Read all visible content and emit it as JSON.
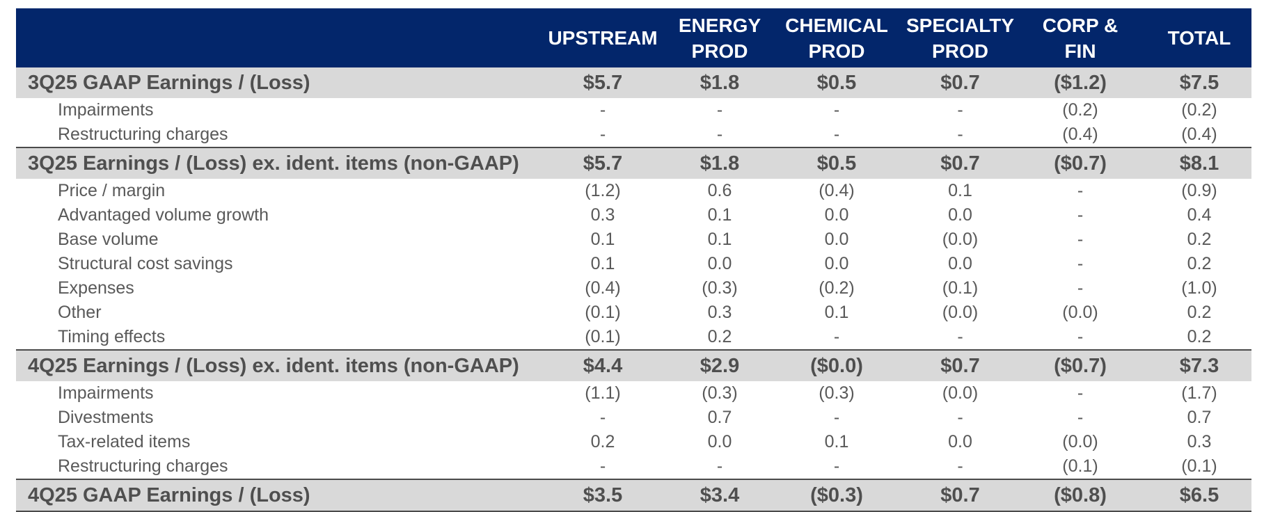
{
  "header": {
    "columns": [
      [
        "UPSTREAM"
      ],
      [
        "ENERGY",
        "PROD"
      ],
      [
        "CHEMICAL",
        "PROD"
      ],
      [
        "SPECIALTY",
        "PROD"
      ],
      [
        "CORP &",
        "FIN"
      ],
      [
        "TOTAL"
      ]
    ]
  },
  "rows": [
    {
      "type": "total",
      "label": "3Q25 GAAP Earnings / (Loss)",
      "values": [
        "$5.7",
        "$1.8",
        "$0.5",
        "$0.7",
        "($1.2)",
        "$7.5"
      ]
    },
    {
      "type": "sub",
      "label": "Impairments",
      "values": [
        "-",
        "-",
        "-",
        "-",
        "(0.2)",
        "(0.2)"
      ]
    },
    {
      "type": "sub",
      "label": "Restructuring charges",
      "values": [
        "-",
        "-",
        "-",
        "-",
        "(0.4)",
        "(0.4)"
      ]
    },
    {
      "type": "total",
      "label": "3Q25 Earnings / (Loss) ex. ident. items (non-GAAP)",
      "values": [
        "$5.7",
        "$1.8",
        "$0.5",
        "$0.7",
        "($0.7)",
        "$8.1"
      ]
    },
    {
      "type": "sub",
      "label": "Price / margin",
      "values": [
        "(1.2)",
        "0.6",
        "(0.4)",
        "0.1",
        "-",
        "(0.9)"
      ]
    },
    {
      "type": "sub",
      "label": "Advantaged volume growth",
      "values": [
        "0.3",
        "0.1",
        "0.0",
        "0.0",
        "-",
        "0.4"
      ]
    },
    {
      "type": "sub",
      "label": "Base volume",
      "values": [
        "0.1",
        "0.1",
        "0.0",
        "(0.0)",
        "-",
        "0.2"
      ]
    },
    {
      "type": "sub",
      "label": "Structural cost savings",
      "values": [
        "0.1",
        "0.0",
        "0.0",
        "0.0",
        "-",
        "0.2"
      ]
    },
    {
      "type": "sub",
      "label": "Expenses",
      "values": [
        "(0.4)",
        "(0.3)",
        "(0.2)",
        "(0.1)",
        "-",
        "(1.0)"
      ]
    },
    {
      "type": "sub",
      "label": "Other",
      "values": [
        "(0.1)",
        "0.3",
        "0.1",
        "(0.0)",
        "(0.0)",
        "0.2"
      ]
    },
    {
      "type": "sub",
      "label": "Timing effects",
      "values": [
        "(0.1)",
        "0.2",
        "-",
        "-",
        "-",
        "0.2"
      ]
    },
    {
      "type": "total",
      "label": "4Q25 Earnings / (Loss) ex. ident. items (non-GAAP)",
      "values": [
        "$4.4",
        "$2.9",
        "($0.0)",
        "$0.7",
        "($0.7)",
        "$7.3"
      ]
    },
    {
      "type": "sub",
      "label": "Impairments",
      "values": [
        "(1.1)",
        "(0.3)",
        "(0.3)",
        "(0.0)",
        "-",
        "(1.7)"
      ]
    },
    {
      "type": "sub",
      "label": "Divestments",
      "values": [
        "-",
        "0.7",
        "-",
        "-",
        "-",
        "0.7"
      ]
    },
    {
      "type": "sub",
      "label": "Tax-related items",
      "values": [
        "0.2",
        "0.0",
        "0.1",
        "0.0",
        "(0.0)",
        "0.3"
      ]
    },
    {
      "type": "sub",
      "label": "Restructuring charges",
      "values": [
        "-",
        "-",
        "-",
        "-",
        "(0.1)",
        "(0.1)"
      ]
    },
    {
      "type": "total",
      "label": "4Q25 GAAP Earnings / (Loss)",
      "values": [
        "$3.5",
        "$3.4",
        "($0.3)",
        "$0.7",
        "($0.8)",
        "$6.5"
      ]
    }
  ],
  "colors": {
    "header_bg": "#03266b",
    "header_text": "#ffffff",
    "total_row_bg": "#d9d9d9",
    "text": "#575757"
  }
}
